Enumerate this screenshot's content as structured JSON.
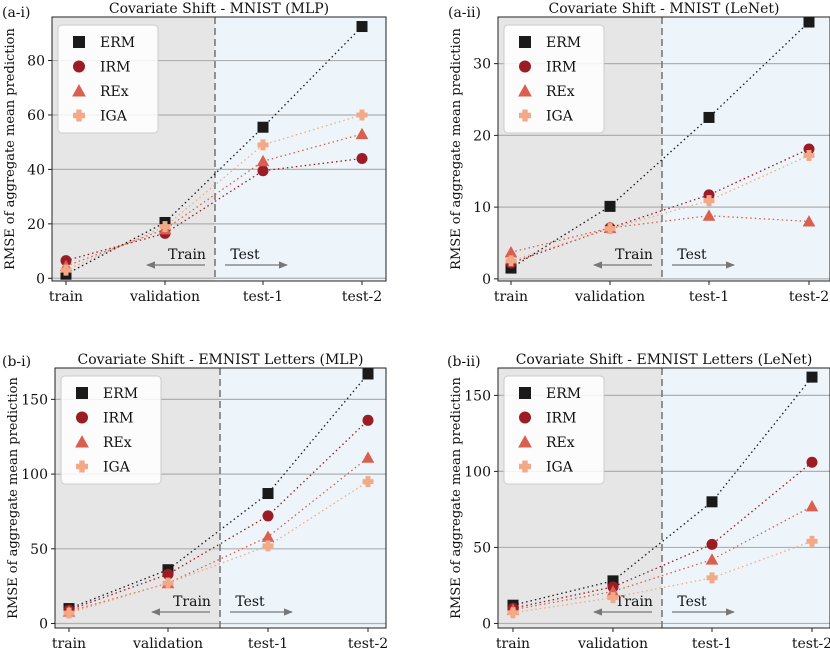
{
  "colors": {
    "ERM": "#1a1a1a",
    "IRM": "#9b1c24",
    "REx": "#d9604f",
    "IGA": "#f2a987",
    "train_bg": "#e6e6e6",
    "test_bg": "#edf4fa",
    "grid": "#b0b0b0",
    "divider": "#7a7a7a"
  },
  "chart_data": [
    {
      "panel_label": "(a-i)",
      "title": "Covariate Shift - MNIST (MLP)",
      "type": "scatter",
      "ylabel": "RMSE of aggregate mean prediction",
      "categories": [
        "train",
        "validation",
        "test-1",
        "test-2"
      ],
      "yticks": [
        0,
        20,
        40,
        60,
        80
      ],
      "ylim": [
        -1,
        96
      ],
      "split_labels": {
        "train": "Train",
        "test": "Test"
      },
      "legend": [
        "ERM",
        "IRM",
        "REx",
        "IGA"
      ],
      "series": [
        {
          "name": "ERM",
          "marker": "square",
          "values": [
            1.5,
            20.5,
            55.5,
            92.5
          ]
        },
        {
          "name": "IRM",
          "marker": "circle",
          "values": [
            6.5,
            16.5,
            39.5,
            44.0
          ]
        },
        {
          "name": "REx",
          "marker": "triangle",
          "values": [
            4.5,
            18.0,
            43.0,
            53.0
          ]
        },
        {
          "name": "IGA",
          "marker": "plus",
          "values": [
            3.0,
            19.0,
            49.0,
            60.0
          ]
        }
      ]
    },
    {
      "panel_label": "(a-ii)",
      "title": "Covariate Shift - MNIST (LeNet)",
      "type": "scatter",
      "ylabel": "RMSE of aggregate mean prediction",
      "categories": [
        "train",
        "validation",
        "test-1",
        "test-2"
      ],
      "yticks": [
        0,
        10,
        20,
        30
      ],
      "ylim": [
        -0.3,
        36.5
      ],
      "split_labels": {
        "train": "Train",
        "test": "Test"
      },
      "legend": [
        "ERM",
        "IRM",
        "REx",
        "IGA"
      ],
      "series": [
        {
          "name": "ERM",
          "marker": "square",
          "values": [
            1.5,
            10.1,
            22.5,
            35.8
          ]
        },
        {
          "name": "IRM",
          "marker": "circle",
          "values": [
            2.2,
            7.1,
            11.7,
            18.1
          ]
        },
        {
          "name": "REx",
          "marker": "triangle",
          "values": [
            3.7,
            7.1,
            8.8,
            8.0
          ]
        },
        {
          "name": "IGA",
          "marker": "plus",
          "values": [
            2.5,
            7.0,
            10.9,
            17.2
          ]
        }
      ]
    },
    {
      "panel_label": "(b-i)",
      "title": "Covariate Shift - EMNIST Letters (MLP)",
      "type": "scatter",
      "ylabel": "RMSE of aggregate mean prediction",
      "categories": [
        "train",
        "validation",
        "test-1",
        "test-2"
      ],
      "yticks": [
        0,
        50,
        100,
        150
      ],
      "ylim": [
        -3,
        171
      ],
      "split_labels": {
        "train": "Train",
        "test": "Test"
      },
      "legend": [
        "ERM",
        "IRM",
        "REx",
        "IGA"
      ],
      "series": [
        {
          "name": "ERM",
          "marker": "square",
          "values": [
            10,
            36,
            87,
            167
          ]
        },
        {
          "name": "IRM",
          "marker": "circle",
          "values": [
            9,
            33,
            72,
            136
          ]
        },
        {
          "name": "REx",
          "marker": "triangle",
          "values": [
            8,
            27,
            58,
            111
          ]
        },
        {
          "name": "IGA",
          "marker": "plus",
          "values": [
            7,
            27,
            52,
            95
          ]
        }
      ]
    },
    {
      "panel_label": "(b-ii)",
      "title": "Covariate Shift - EMNIST Letters (LeNet)",
      "type": "scatter",
      "ylabel": "RMSE of aggregate mean prediction",
      "categories": [
        "train",
        "validation",
        "test-1",
        "test-2"
      ],
      "yticks": [
        0,
        50,
        100,
        150
      ],
      "ylim": [
        -3,
        168
      ],
      "split_labels": {
        "train": "Train",
        "test": "Test"
      },
      "legend": [
        "ERM",
        "IRM",
        "REx",
        "IGA"
      ],
      "series": [
        {
          "name": "ERM",
          "marker": "square",
          "values": [
            12,
            28,
            80,
            162
          ]
        },
        {
          "name": "IRM",
          "marker": "circle",
          "values": [
            10,
            24,
            52,
            106
          ]
        },
        {
          "name": "REx",
          "marker": "triangle",
          "values": [
            9,
            21,
            42,
            77
          ]
        },
        {
          "name": "IGA",
          "marker": "plus",
          "values": [
            7,
            17,
            30,
            54
          ]
        }
      ]
    }
  ]
}
